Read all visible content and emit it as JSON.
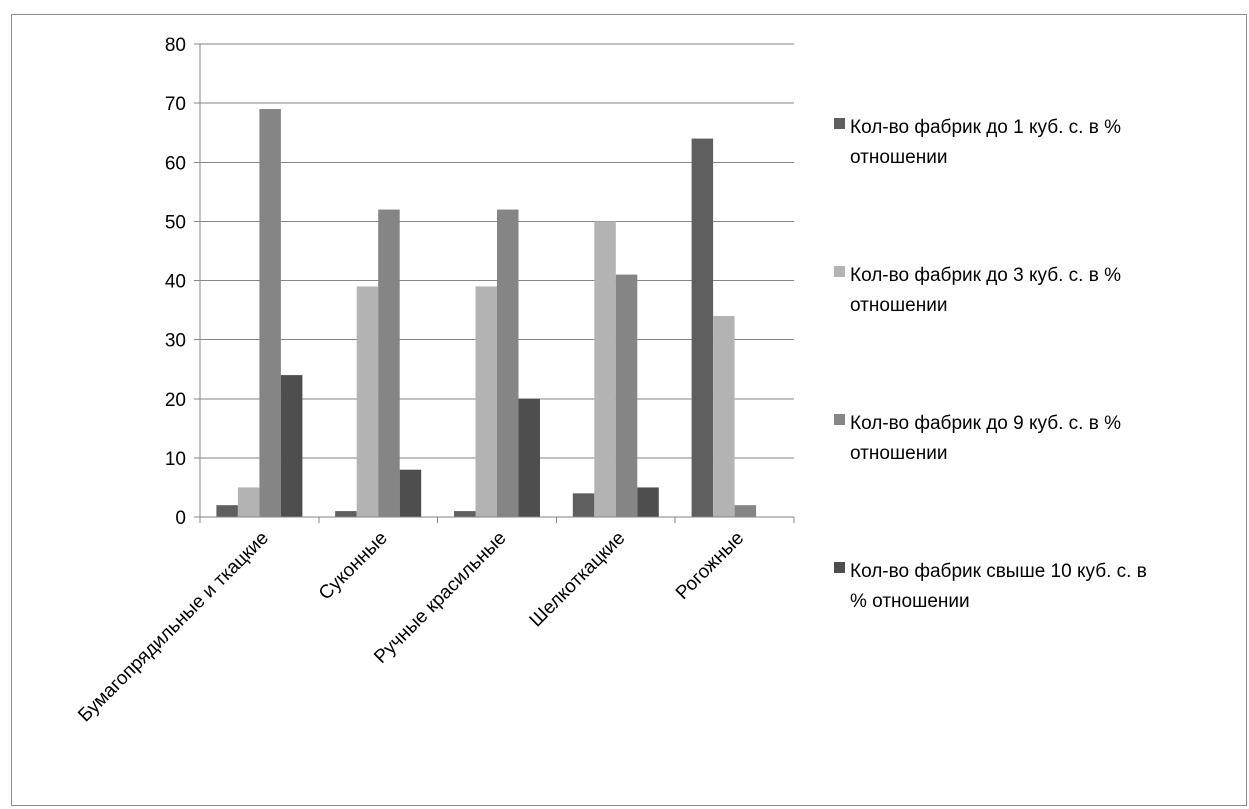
{
  "chart_data": {
    "type": "bar",
    "title": "",
    "xlabel": "",
    "ylabel": "",
    "ylim": [
      0,
      80
    ],
    "yticks": [
      0,
      10,
      20,
      30,
      40,
      50,
      60,
      70,
      80
    ],
    "grid": true,
    "legend_position": "right",
    "categories": [
      "Бумагопрядильные и ткацкие",
      "Суконные",
      "Ручные красильные",
      "Шелкоткацкие",
      "Рогожные"
    ],
    "series": [
      {
        "name": "Кол-во фабрик до 1 куб. с. в % отношении",
        "legend_lines": [
          "Кол-во фабрик до 1 куб. с. в %",
          "отношении"
        ],
        "color": "#5f5f5f",
        "values": [
          2,
          1,
          1,
          4,
          64
        ]
      },
      {
        "name": "Кол-во фабрик до 3 куб. с. в % отношении",
        "legend_lines": [
          "Кол-во фабрик до 3 куб. с. в %",
          "отношении"
        ],
        "color": "#b3b3b3",
        "values": [
          5,
          39,
          39,
          50,
          34
        ]
      },
      {
        "name": "Кол-во фабрик до 9 куб. с. в % отношении",
        "legend_lines": [
          "Кол-во фабрик до 9 куб. с. в %",
          "отношении"
        ],
        "color": "#858585",
        "values": [
          69,
          52,
          52,
          41,
          2
        ]
      },
      {
        "name": "Кол-во фабрик свыше 10 куб. с. в % отношении",
        "legend_lines": [
          "Кол-во фабрик свыше 10 куб. с. в",
          "% отношении"
        ],
        "color": "#4e4e4e",
        "values": [
          24,
          8,
          20,
          5,
          null
        ]
      }
    ]
  }
}
